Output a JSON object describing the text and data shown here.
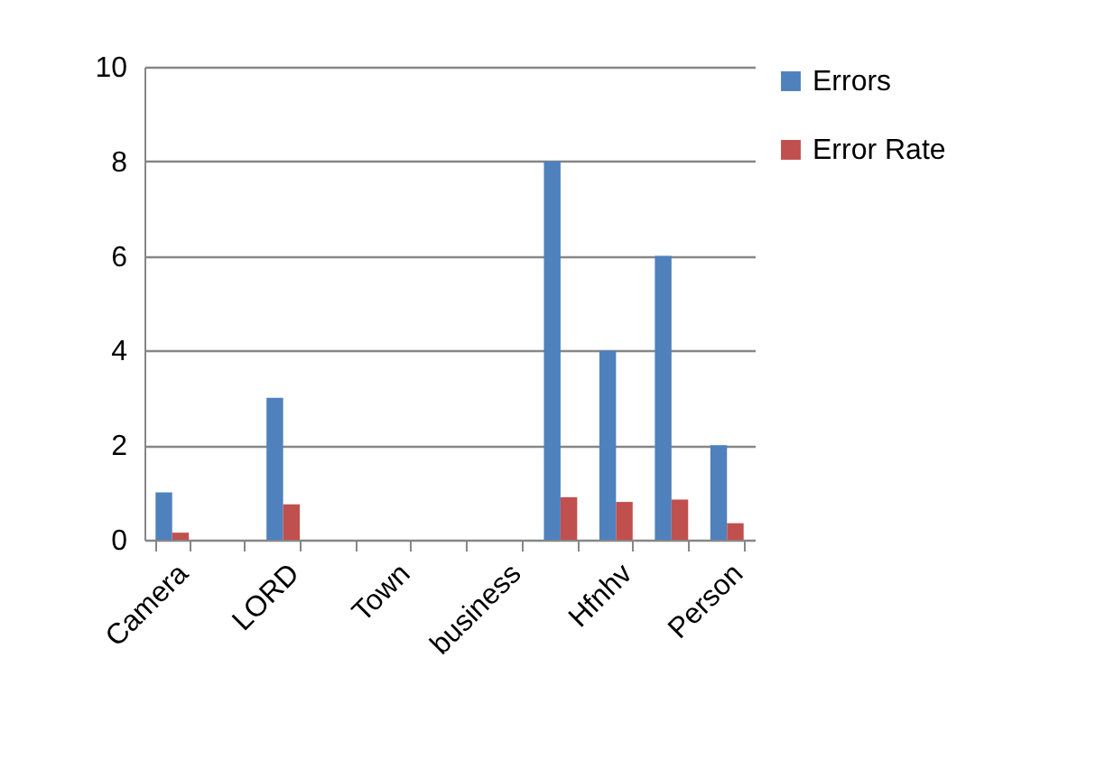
{
  "chart_data": {
    "type": "bar",
    "categories": [
      "Camera",
      null,
      "LORD",
      null,
      "Town",
      null,
      "business",
      null,
      "Hfnhv",
      null,
      "Person"
    ],
    "series": [
      {
        "name": "Errors",
        "color": "#4f81bd",
        "values": [
          1,
          0,
          3,
          0,
          0,
          0,
          0,
          8,
          4,
          6,
          2
        ]
      },
      {
        "name": "Error Rate",
        "color": "#c0504d",
        "values": [
          0.15,
          0,
          0.75,
          0,
          0,
          0,
          0,
          0.9,
          0.8,
          0.85,
          0.35
        ]
      }
    ],
    "ylim": [
      0,
      10
    ],
    "yticks": [
      0,
      2,
      4,
      6,
      8,
      10
    ],
    "grid": "y",
    "legend": "right"
  }
}
